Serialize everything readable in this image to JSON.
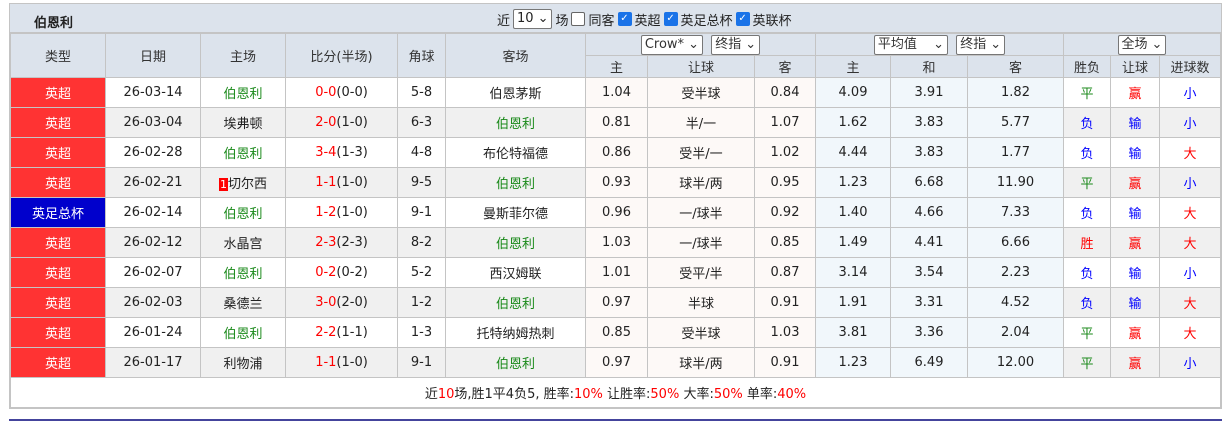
{
  "title": "伯恩利",
  "filters": {
    "recent_label": "近",
    "count": "10",
    "unit": "场",
    "same_label": "同客",
    "same_checked": false,
    "leagues": [
      {
        "label": "英超",
        "checked": true
      },
      {
        "label": "英足总杯",
        "checked": true
      },
      {
        "label": "英联杯",
        "checked": true
      }
    ]
  },
  "headers": {
    "type": "类型",
    "date": "日期",
    "home": "主场",
    "score": "比分(半场)",
    "corner": "角球",
    "away": "客场",
    "ah_company": "Crow*",
    "ah_mode": "终指",
    "eu_company": "平均值",
    "eu_mode": "终指",
    "range": "全场",
    "ah_home": "主",
    "ah_line": "让球",
    "ah_away": "客",
    "eu_home": "主",
    "eu_draw": "和",
    "eu_away": "客",
    "res": "胜负",
    "res_ah": "让球",
    "res_ou": "进球数"
  },
  "colors": {
    "epl": "#ff3333",
    "fa_cup": "#0000cc",
    "win": "#f00",
    "draw": "#1b8a1b",
    "loss": "#00f"
  },
  "rows": [
    {
      "type": "英超",
      "tc": "#ff3333",
      "date": "26-03-14",
      "home": "伯恩利",
      "hg": true,
      "rank": "",
      "ft": "0-0",
      "ht": "(0-0)",
      "corner": "5-8",
      "away": "伯恩茅斯",
      "ag": false,
      "ah_h": "1.04",
      "ah_l": "受半球",
      "ah_a": "0.84",
      "eu_h": "4.09",
      "eu_d": "3.91",
      "eu_a": "1.82",
      "res": "平",
      "ah": "赢",
      "ou": "小"
    },
    {
      "type": "英超",
      "tc": "#ff3333",
      "date": "26-03-04",
      "home": "埃弗顿",
      "hg": false,
      "rank": "",
      "ft": "2-0",
      "ht": "(1-0)",
      "corner": "6-3",
      "away": "伯恩利",
      "ag": true,
      "ah_h": "0.81",
      "ah_l": "半/一",
      "ah_a": "1.07",
      "eu_h": "1.62",
      "eu_d": "3.83",
      "eu_a": "5.77",
      "res": "负",
      "ah": "输",
      "ou": "小"
    },
    {
      "type": "英超",
      "tc": "#ff3333",
      "date": "26-02-28",
      "home": "伯恩利",
      "hg": true,
      "rank": "",
      "ft": "3-4",
      "ht": "(1-3)",
      "corner": "4-8",
      "away": "布伦特福德",
      "ag": false,
      "ah_h": "0.86",
      "ah_l": "受半/一",
      "ah_a": "1.02",
      "eu_h": "4.44",
      "eu_d": "3.83",
      "eu_a": "1.77",
      "res": "负",
      "ah": "输",
      "ou": "大"
    },
    {
      "type": "英超",
      "tc": "#ff3333",
      "date": "26-02-21",
      "home": "切尔西",
      "hg": false,
      "rank": "1",
      "ft": "1-1",
      "ht": "(1-0)",
      "corner": "9-5",
      "away": "伯恩利",
      "ag": true,
      "ah_h": "0.93",
      "ah_l": "球半/两",
      "ah_a": "0.95",
      "eu_h": "1.23",
      "eu_d": "6.68",
      "eu_a": "11.90",
      "res": "平",
      "ah": "赢",
      "ou": "小"
    },
    {
      "type": "英足总杯",
      "tc": "#0000cc",
      "date": "26-02-14",
      "home": "伯恩利",
      "hg": true,
      "rank": "",
      "ft": "1-2",
      "ht": "(1-0)",
      "corner": "9-1",
      "away": "曼斯菲尔德",
      "ag": false,
      "ah_h": "0.96",
      "ah_l": "一/球半",
      "ah_a": "0.92",
      "eu_h": "1.40",
      "eu_d": "4.66",
      "eu_a": "7.33",
      "res": "负",
      "ah": "输",
      "ou": "大"
    },
    {
      "type": "英超",
      "tc": "#ff3333",
      "date": "26-02-12",
      "home": "水晶宫",
      "hg": false,
      "rank": "",
      "ft": "2-3",
      "ht": "(2-3)",
      "corner": "8-2",
      "away": "伯恩利",
      "ag": true,
      "ah_h": "1.03",
      "ah_l": "一/球半",
      "ah_a": "0.85",
      "eu_h": "1.49",
      "eu_d": "4.41",
      "eu_a": "6.66",
      "res": "胜",
      "ah": "赢",
      "ou": "大"
    },
    {
      "type": "英超",
      "tc": "#ff3333",
      "date": "26-02-07",
      "home": "伯恩利",
      "hg": true,
      "rank": "",
      "ft": "0-2",
      "ht": "(0-2)",
      "corner": "5-2",
      "away": "西汉姆联",
      "ag": false,
      "ah_h": "1.01",
      "ah_l": "受平/半",
      "ah_a": "0.87",
      "eu_h": "3.14",
      "eu_d": "3.54",
      "eu_a": "2.23",
      "res": "负",
      "ah": "输",
      "ou": "小"
    },
    {
      "type": "英超",
      "tc": "#ff3333",
      "date": "26-02-03",
      "home": "桑德兰",
      "hg": false,
      "rank": "",
      "ft": "3-0",
      "ht": "(2-0)",
      "corner": "1-2",
      "away": "伯恩利",
      "ag": true,
      "ah_h": "0.97",
      "ah_l": "半球",
      "ah_a": "0.91",
      "eu_h": "1.91",
      "eu_d": "3.31",
      "eu_a": "4.52",
      "res": "负",
      "ah": "输",
      "ou": "大"
    },
    {
      "type": "英超",
      "tc": "#ff3333",
      "date": "26-01-24",
      "home": "伯恩利",
      "hg": true,
      "rank": "",
      "ft": "2-2",
      "ht": "(1-1)",
      "corner": "1-3",
      "away": "托特纳姆热刺",
      "ag": false,
      "ah_h": "0.85",
      "ah_l": "受半球",
      "ah_a": "1.03",
      "eu_h": "3.81",
      "eu_d": "3.36",
      "eu_a": "2.04",
      "res": "平",
      "ah": "赢",
      "ou": "大"
    },
    {
      "type": "英超",
      "tc": "#ff3333",
      "date": "26-01-17",
      "home": "利物浦",
      "hg": false,
      "rank": "",
      "ft": "1-1",
      "ht": "(1-0)",
      "corner": "9-1",
      "away": "伯恩利",
      "ag": true,
      "ah_h": "0.97",
      "ah_l": "球半/两",
      "ah_a": "0.91",
      "eu_h": "1.23",
      "eu_d": "6.49",
      "eu_a": "12.00",
      "res": "平",
      "ah": "赢",
      "ou": "小"
    }
  ],
  "summary": {
    "p1": "近",
    "n": "10",
    "p2": "场,胜1平4负5, 胜率:",
    "win": "10%",
    "p3": " 让胜率:",
    "ahwin": "50%",
    "p4": " 大率:",
    "big": "50%",
    "p5": " 单率:",
    "odd": "40%"
  }
}
